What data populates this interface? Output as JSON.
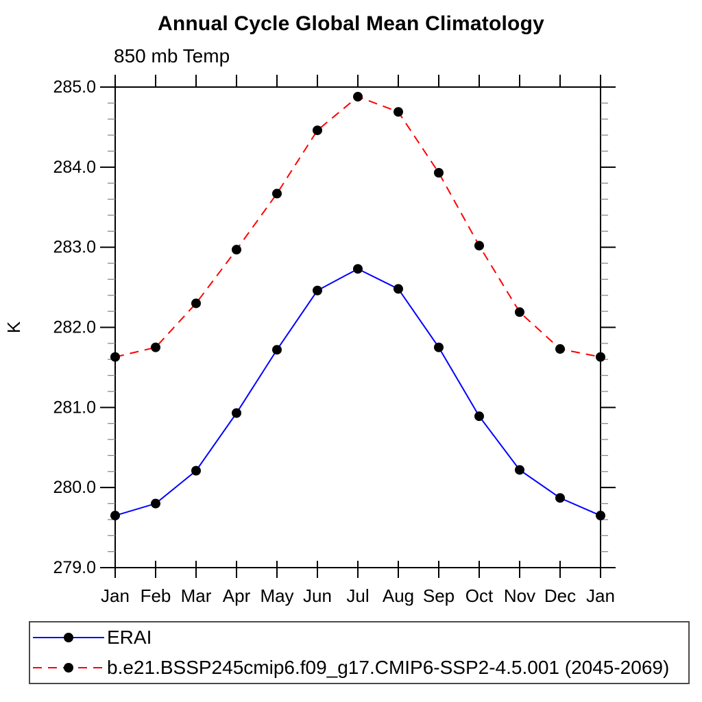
{
  "page": {
    "background": "#ffffff",
    "text_color": "#000000"
  },
  "chart_data": {
    "type": "line",
    "title": "Annual Cycle Global Mean Climatology",
    "subtitle": "850 mb Temp",
    "ylabel": "K",
    "xlabel": "",
    "ylim": [
      279.0,
      285.0
    ],
    "ytick_interval": 1.0,
    "ytick_minor_interval": 0.2,
    "ytick_labels": [
      "279.0",
      "280.0",
      "281.0",
      "282.0",
      "283.0",
      "284.0",
      "285.0"
    ],
    "categories": [
      "Jan",
      "Feb",
      "Mar",
      "Apr",
      "May",
      "Jun",
      "Jul",
      "Aug",
      "Sep",
      "Oct",
      "Nov",
      "Dec",
      "Jan"
    ],
    "grid": false,
    "legend_position": "bottom",
    "marker": "filled-circle",
    "marker_color": "#000000",
    "series": [
      {
        "name": "ERAI",
        "color": "#0000ff",
        "line_style": "solid",
        "values": [
          279.65,
          279.8,
          280.21,
          280.93,
          281.72,
          282.46,
          282.73,
          282.48,
          281.75,
          280.89,
          280.22,
          279.87,
          279.65
        ]
      },
      {
        "name": "b.e21.BSSP245cmip6.f09_g17.CMIP6-SSP2-4.5.001 (2045-2069)",
        "color": "#ff0000",
        "line_style": "dashed",
        "values": [
          281.63,
          281.75,
          282.3,
          282.97,
          283.67,
          284.46,
          284.88,
          284.69,
          283.93,
          283.02,
          282.19,
          281.73,
          281.63
        ]
      }
    ]
  }
}
